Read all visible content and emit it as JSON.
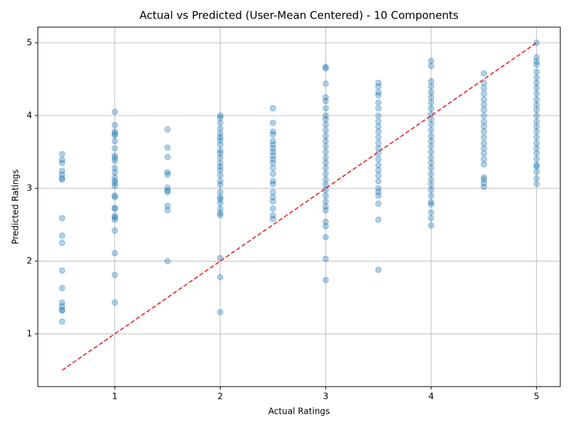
{
  "chart_data": {
    "type": "scatter",
    "title": "Actual vs Predicted (User-Mean Centered) - 10 Components",
    "xlabel": "Actual Ratings",
    "ylabel": "Predicted Ratings",
    "xlim": [
      0.27,
      5.225
    ],
    "ylim": [
      0.275,
      5.216
    ],
    "xticks": [
      1,
      2,
      3,
      4,
      5
    ],
    "yticks": [
      1,
      2,
      3,
      4,
      5
    ],
    "grid": true,
    "color": "#1f77b4",
    "alpha": 0.35,
    "x": [
      0.5,
      0.5,
      0.5,
      0.5,
      0.5,
      0.5,
      0.5,
      0.5,
      0.5,
      0.5,
      0.5,
      0.5,
      0.5,
      0.5,
      0.5,
      0.5,
      0.5,
      1,
      1,
      1,
      1,
      1,
      1,
      1,
      1,
      1,
      1,
      1,
      1,
      1,
      1,
      1,
      1,
      1,
      1,
      1,
      1,
      1,
      1,
      1,
      1,
      1,
      1,
      1,
      1.5,
      1.5,
      1.5,
      1.5,
      1.5,
      1.5,
      1.5,
      1.5,
      1.5,
      1.5,
      1.5,
      2,
      2,
      2,
      2,
      2,
      2,
      2,
      2,
      2,
      2,
      2,
      2,
      2,
      2,
      2,
      2,
      2,
      2,
      2,
      2,
      2,
      2,
      2,
      2,
      2,
      2,
      2,
      2.5,
      2.5,
      2.5,
      2.5,
      2.5,
      2.5,
      2.5,
      2.5,
      2.5,
      2.5,
      2.5,
      2.5,
      2.5,
      2.5,
      2.5,
      2.5,
      2.5,
      2.5,
      2.5,
      2.5,
      2.5,
      3,
      3,
      3,
      3,
      3,
      3,
      3,
      3,
      3,
      3,
      3,
      3,
      3,
      3,
      3,
      3,
      3,
      3,
      3,
      3,
      3,
      3,
      3,
      3,
      3,
      3,
      3,
      3,
      3,
      3,
      3.5,
      3.5,
      3.5,
      3.5,
      3.5,
      3.5,
      3.5,
      3.5,
      3.5,
      3.5,
      3.5,
      3.5,
      3.5,
      3.5,
      3.5,
      3.5,
      3.5,
      3.5,
      3.5,
      3.5,
      3.5,
      3.5,
      3.5,
      3.5,
      3.5,
      4,
      4,
      4,
      4,
      4,
      4,
      4,
      4,
      4,
      4,
      4,
      4,
      4,
      4,
      4,
      4,
      4,
      4,
      4,
      4,
      4,
      4,
      4,
      4,
      4,
      4,
      4,
      4,
      4,
      4.5,
      4.5,
      4.5,
      4.5,
      4.5,
      4.5,
      4.5,
      4.5,
      4.5,
      4.5,
      4.5,
      4.5,
      4.5,
      4.5,
      4.5,
      4.5,
      4.5,
      4.5,
      4.5,
      4.5,
      4.5,
      5,
      5,
      5,
      5,
      5,
      5,
      5,
      5,
      5,
      5,
      5,
      5,
      5,
      5,
      5,
      5,
      5,
      5,
      5,
      5,
      5,
      5,
      5,
      5,
      5,
      5
    ],
    "values": [
      3.47,
      3.39,
      3.35,
      3.24,
      3.19,
      3.14,
      3.12,
      2.59,
      2.35,
      2.25,
      1.87,
      1.63,
      1.43,
      1.38,
      1.33,
      1.32,
      1.17,
      4.05,
      3.87,
      3.78,
      3.75,
      3.73,
      3.65,
      3.55,
      3.45,
      3.42,
      3.38,
      3.28,
      3.22,
      3.15,
      3.1,
      3.07,
      3.03,
      2.9,
      2.88,
      2.73,
      2.72,
      2.62,
      2.6,
      2.57,
      2.42,
      2.11,
      1.81,
      1.43,
      3.81,
      3.56,
      3.43,
      3.22,
      3.19,
      3.01,
      2.97,
      2.95,
      2.76,
      2.7,
      2.0,
      4.0,
      3.97,
      3.9,
      3.82,
      3.75,
      3.7,
      3.66,
      3.6,
      3.52,
      3.48,
      3.42,
      3.35,
      3.3,
      3.25,
      3.18,
      3.1,
      3.05,
      2.95,
      2.88,
      2.85,
      2.8,
      2.72,
      2.66,
      2.63,
      2.04,
      1.78,
      1.3,
      4.1,
      3.9,
      3.78,
      3.74,
      3.65,
      3.6,
      3.55,
      3.5,
      3.45,
      3.4,
      3.35,
      3.28,
      3.2,
      3.1,
      3.06,
      2.95,
      2.88,
      2.82,
      2.72,
      2.63,
      2.58,
      4.67,
      4.65,
      4.44,
      4.25,
      4.2,
      4.1,
      4.0,
      3.95,
      3.88,
      3.8,
      3.72,
      3.65,
      3.58,
      3.5,
      3.42,
      3.35,
      3.28,
      3.2,
      3.12,
      3.05,
      2.98,
      2.9,
      2.82,
      2.75,
      2.7,
      2.54,
      2.48,
      2.33,
      2.03,
      1.74,
      4.45,
      4.4,
      4.32,
      4.28,
      4.18,
      4.1,
      4.0,
      3.92,
      3.85,
      3.78,
      3.7,
      3.62,
      3.55,
      3.48,
      3.4,
      3.32,
      3.25,
      3.18,
      3.1,
      3.0,
      2.95,
      2.9,
      2.79,
      2.57,
      1.88,
      4.75,
      4.68,
      4.47,
      4.4,
      4.32,
      4.25,
      4.18,
      4.1,
      4.02,
      3.95,
      3.88,
      3.8,
      3.72,
      3.65,
      3.58,
      3.5,
      3.42,
      3.35,
      3.28,
      3.2,
      3.12,
      3.05,
      2.98,
      2.9,
      2.81,
      2.78,
      2.67,
      2.59,
      2.49,
      4.58,
      4.45,
      4.38,
      4.3,
      4.22,
      4.15,
      4.08,
      4.0,
      3.92,
      3.85,
      3.78,
      3.7,
      3.62,
      3.55,
      3.48,
      3.4,
      3.33,
      3.15,
      3.12,
      3.07,
      3.02,
      5.0,
      4.8,
      4.74,
      4.7,
      4.6,
      4.52,
      4.45,
      4.38,
      4.3,
      4.22,
      4.15,
      4.08,
      4.0,
      3.92,
      3.85,
      3.78,
      3.7,
      3.62,
      3.55,
      3.48,
      3.4,
      3.32,
      3.3,
      3.23,
      3.14,
      3.06
    ],
    "reference_line": {
      "x": [
        0.5,
        5
      ],
      "values": [
        0.5,
        5
      ],
      "color": "#e41a1c",
      "dashed": true
    }
  }
}
